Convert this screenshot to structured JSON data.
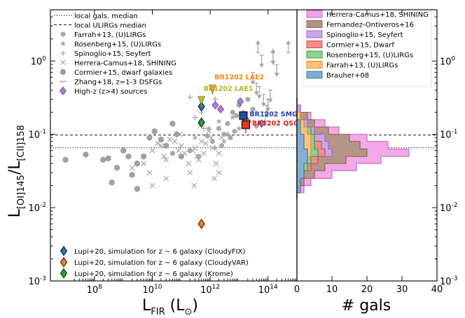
{
  "chart_data": [
    {
      "type": "scatter",
      "xlabel": "L_FIR (L_⊙)",
      "ylabel": "L_[OI]145 / L_[CII]158",
      "x_scale": "log",
      "y_scale": "log",
      "xlim": [
        3000000.0,
        1000000000000000.0
      ],
      "ylim": [
        0.001,
        5
      ],
      "x_ticks": [
        {
          "v": 100000000.0,
          "label": "10^8"
        },
        {
          "v": 10000000000.0,
          "label": "10^10"
        },
        {
          "v": 1000000000000.0,
          "label": "10^12"
        },
        {
          "v": 100000000000000.0,
          "label": "10^14"
        }
      ],
      "y_ticks": [
        {
          "v": 1,
          "label": "10^0"
        },
        {
          "v": 0.1,
          "label": "10^-1"
        },
        {
          "v": 0.01,
          "label": "10^-2"
        },
        {
          "v": 0.001,
          "label": "10^-3"
        }
      ],
      "reference_lines": [
        {
          "name": "local gals. median",
          "y": 0.066,
          "style": "dotted"
        },
        {
          "name": "local ULIRGs median",
          "y": 0.098,
          "style": "dashed"
        }
      ],
      "legend_top": [
        {
          "label": "local gals. median",
          "marker": "dotted-line"
        },
        {
          "label": "local ULIRGs median",
          "marker": "dashed-line"
        },
        {
          "label": "Farrah+13, (U)LIRGs",
          "marker": "circle"
        },
        {
          "label": "Rosenberg+15, (U)LIRGs",
          "marker": "star"
        },
        {
          "label": "Spinoglio+15, Seyfert",
          "marker": "plus"
        },
        {
          "label": "Herrera-Camus+18, SHINING",
          "marker": "x"
        },
        {
          "label": "Cormier+15, dwarf galaxies",
          "marker": "hexagon"
        },
        {
          "label": "Zhang+18, z=1-3 DSFGs",
          "marker": "dash"
        },
        {
          "label": "High-z (z>4) sources",
          "marker": "purple-diamond"
        }
      ],
      "legend_bottom": [
        {
          "label": "Lupi+20, simulation for z ~ 6 galaxy (CloudyFIX)",
          "color": "#1f77b4"
        },
        {
          "label": "Lupi+20, simulation for z ~ 6 galaxy (CloudyVAR)",
          "color": "#ff7f0e"
        },
        {
          "label": "Lupi+20, simulation for z ~ 6 galaxy (Krome)",
          "color": "#2ca02c"
        }
      ],
      "series": [
        {
          "name": "Farrah+13, (U)LIRGs",
          "marker": "circle",
          "points": [
            [
              50000000000.0,
              0.055
            ],
            [
              200000000000.0,
              0.06
            ],
            [
              400000000000.0,
              0.05
            ],
            [
              800000000000.0,
              0.095
            ],
            [
              1200000000000.0,
              0.08
            ],
            [
              2000000000000.0,
              0.12
            ],
            [
              3000000000000.0,
              0.1
            ],
            [
              4000000000000.0,
              0.14
            ],
            [
              6000000000000.0,
              0.2
            ],
            [
              8000000000000.0,
              0.18
            ],
            [
              10000000000000.0,
              0.25
            ],
            [
              15000000000000.0,
              0.15
            ],
            [
              20000000000000.0,
              0.3
            ],
            [
              30000000000000.0,
              0.22
            ],
            [
              40000000000000.0,
              0.13
            ],
            [
              5000000000000.0,
              0.09
            ],
            [
              2500000000000.0,
              0.07
            ],
            [
              7000000000000.0,
              0.11
            ]
          ]
        },
        {
          "name": "Rosenberg+15, (U)LIRGs",
          "marker": "star",
          "points": [
            [
              300000000000.0,
              0.09
            ],
            [
              900000000000.0,
              0.12
            ],
            [
              2000000000000.0,
              0.15
            ],
            [
              4000000000000.0,
              0.1
            ],
            [
              6000000000000.0,
              0.17
            ],
            [
              10000000000000.0,
              0.12
            ],
            [
              3000000000000.0,
              0.08
            ],
            [
              1500000000000.0,
              0.065
            ]
          ]
        },
        {
          "name": "Spinoglio+15, Seyfert",
          "marker": "plus",
          "points": [
            [
              200000000000.0,
              0.32
            ],
            [
              500000000000.0,
              0.2
            ],
            [
              1500000000000.0,
              0.3
            ],
            [
              300000000000.0,
              0.17
            ],
            [
              600000000000.0,
              0.12
            ]
          ]
        },
        {
          "name": "Herrera-Camus+18, SHINING",
          "marker": "x",
          "points": [
            [
              2000000000.0,
              0.035
            ],
            [
              5000000000.0,
              0.04
            ],
            [
              10000000000.0,
              0.06
            ],
            [
              15000000000.0,
              0.075
            ],
            [
              20000000000.0,
              0.07
            ],
            [
              25000000000.0,
              0.05
            ],
            [
              30000000000.0,
              0.045
            ],
            [
              40000000000.0,
              0.085
            ],
            [
              60000000000.0,
              0.08
            ],
            [
              80000000000.0,
              0.06
            ],
            [
              100000000000.0,
              0.07
            ],
            [
              130000000000.0,
              0.055
            ],
            [
              180000000000.0,
              0.04
            ],
            [
              250000000000.0,
              0.06
            ],
            [
              350000000000.0,
              0.05
            ],
            [
              400000000000.0,
              0.045
            ],
            [
              500000000000.0,
              0.08
            ],
            [
              700000000000.0,
              0.075
            ],
            [
              900000000000.0,
              0.11
            ],
            [
              1200000000000.0,
              0.065
            ],
            [
              1600000000000.0,
              0.04
            ],
            [
              2000000000000.0,
              0.055
            ],
            [
              2500000000000.0,
              0.09
            ],
            [
              3500000000000.0,
              0.1
            ],
            [
              10000000000.0,
              0.02
            ],
            [
              30000000000.0,
              0.025
            ],
            [
              8000000000.0,
              0.03
            ],
            [
              200000000000.0,
              0.03
            ],
            [
              300000000000.0,
              0.065
            ],
            [
              600000000000.0,
              0.055
            ],
            [
              1100000000000.0,
              0.09
            ],
            [
              1400000000000.0,
              0.025
            ],
            [
              2000000000000.0,
              0.03
            ],
            [
              280000000000.0,
              0.02
            ],
            [
              450000000000.0,
              0.13
            ],
            [
              90000000000.0,
              0.1
            ]
          ]
        },
        {
          "name": "Cormier+15, dwarf galaxies",
          "marker": "hexagon",
          "points": [
            [
              10000000.0,
              0.045
            ],
            [
              50000000.0,
              0.053
            ],
            [
              200000000.0,
              0.045
            ],
            [
              300000000.0,
              0.047
            ],
            [
              400000000.0,
              0.022
            ],
            [
              600000000.0,
              0.035
            ],
            [
              1000000000.0,
              0.06
            ],
            [
              1500000000.0,
              0.05
            ],
            [
              2000000000.0,
              0.028
            ],
            [
              3000000000.0,
              0.04
            ],
            [
              5000000000.0,
              0.05
            ],
            [
              8000000000.0,
              0.09
            ],
            [
              12000000000.0,
              0.11
            ],
            [
              20000000000.0,
              0.085
            ],
            [
              30000000000.0,
              0.07
            ],
            [
              50000000000.0,
              0.14
            ],
            [
              70000000000.0,
              0.1
            ],
            [
              100000000000.0,
              0.05
            ],
            [
              3000000000.0,
              0.018
            ]
          ]
        },
        {
          "name": "High-z (z>4) sources",
          "marker": "purple-diamond",
          "points": [
            [
              1500000000000.0,
              0.25
            ],
            [
              2300000000000.0,
              0.22
            ],
            [
              11000000000000.0,
              0.28
            ],
            [
              20000000000000.0,
              0.15
            ],
            [
              60000000000000.0,
              0.14
            ]
          ]
        }
      ],
      "upper_limits": [
        [
          30000000000000.0,
          0.7
        ],
        [
          40000000000000.0,
          0.5
        ],
        [
          50000000000000.0,
          0.45
        ],
        [
          60000000000000.0,
          1.2
        ],
        [
          70000000000000.0,
          0.35
        ],
        [
          90000000000000.0,
          0.25
        ],
        [
          120000000000000.0,
          0.4
        ],
        [
          150000000000000.0,
          1.3
        ],
        [
          200000000000000.0,
          0.9
        ],
        [
          100000000000000.0,
          0.3
        ],
        [
          80000000000000.0,
          0.2
        ]
      ],
      "lower_limits": [
        [
          45000000000000.0,
          1.3
        ],
        [
          150000000000000.0,
          1.0
        ],
        [
          500000000000000.0,
          1.3
        ]
      ],
      "highlighted": [
        {
          "label": "BR1202 LAE2",
          "x": 1200000000000.0,
          "y": 0.47,
          "color": "#ff9f1c",
          "label_color": "#ee8a0a",
          "limit": "upper"
        },
        {
          "label": "BR1202 LAE1",
          "x": 500000000000.0,
          "y": 0.33,
          "color": "#bdbd22",
          "label_color": "#b5b516",
          "limit": "upper"
        },
        {
          "label": "BR1202 SMG",
          "x": 14000000000000.0,
          "y": 0.18,
          "color": "#1f4fa8",
          "label_color": "#1f3fb4"
        },
        {
          "label": "BR1202 QSO",
          "x": 17000000000000.0,
          "y": 0.135,
          "color": "#e8341c",
          "label_color": "#d62020"
        }
      ],
      "lupi_points": [
        {
          "x": 500000000000.0,
          "y": 0.24,
          "color": "#1f77b4"
        },
        {
          "x": 500000000000.0,
          "y": 0.006,
          "color": "#ff7f0e"
        },
        {
          "x": 500000000000.0,
          "y": 0.145,
          "color": "#2ca02c"
        }
      ]
    },
    {
      "type": "histogram",
      "orientation": "horizontal",
      "xlabel": "# gals",
      "xlim": [
        0,
        40
      ],
      "x_ticks": [
        0,
        10,
        20,
        30,
        40
      ],
      "y_scale": "log",
      "ylim": [
        0.001,
        5
      ],
      "bin_edges": [
        0.013,
        0.016,
        0.02,
        0.025,
        0.032,
        0.04,
        0.05,
        0.063,
        0.08,
        0.1,
        0.126,
        0.158,
        0.2,
        0.25,
        0.32
      ],
      "series": [
        {
          "name": "Herrera-Camus+18, SHINING",
          "color": "#f2a3e6",
          "edge": "#c86cbf",
          "counts": [
            0,
            2,
            4,
            10,
            17,
            24,
            32,
            26,
            20,
            12,
            8,
            4,
            1,
            0
          ]
        },
        {
          "name": "Fernandez-Ontiveros+16",
          "color": "#b09382",
          "edge": "#8a6a58",
          "counts": [
            0,
            1,
            2,
            5,
            8,
            14,
            20,
            18,
            15,
            9,
            5,
            3,
            1,
            0
          ]
        },
        {
          "name": "Spinoglio+15, Seyfert",
          "color": "#c9a6e8",
          "edge": "#9c6ad6",
          "counts": [
            0,
            0,
            1,
            2,
            3,
            6,
            10,
            9,
            8,
            5,
            3,
            1,
            1,
            0
          ]
        },
        {
          "name": "Cormier+15, Dwarf",
          "color": "#f28b8b",
          "edge": "#d64e4e",
          "counts": [
            0,
            0,
            1,
            2,
            4,
            6,
            8,
            7,
            5,
            3,
            2,
            1,
            0,
            0
          ]
        },
        {
          "name": "Rosenberg+15, (U)LIRGs",
          "color": "#8fd18f",
          "edge": "#3da03d",
          "counts": [
            0,
            0,
            1,
            2,
            3,
            4,
            6,
            5,
            5,
            4,
            2,
            1,
            0,
            0
          ]
        },
        {
          "name": "Farrah+13, (U)LIRGs",
          "color": "#ffc27a",
          "edge": "#f08a1a",
          "counts": [
            0,
            0,
            1,
            1,
            2,
            3,
            4,
            4,
            4,
            3,
            2,
            1,
            0,
            0
          ]
        },
        {
          "name": "Brauher+08",
          "color": "#7eaed1",
          "edge": "#3b7eb4",
          "counts": [
            0,
            1,
            1,
            2,
            2,
            3,
            3,
            2,
            2,
            1,
            1,
            0,
            0,
            0
          ]
        }
      ]
    }
  ]
}
